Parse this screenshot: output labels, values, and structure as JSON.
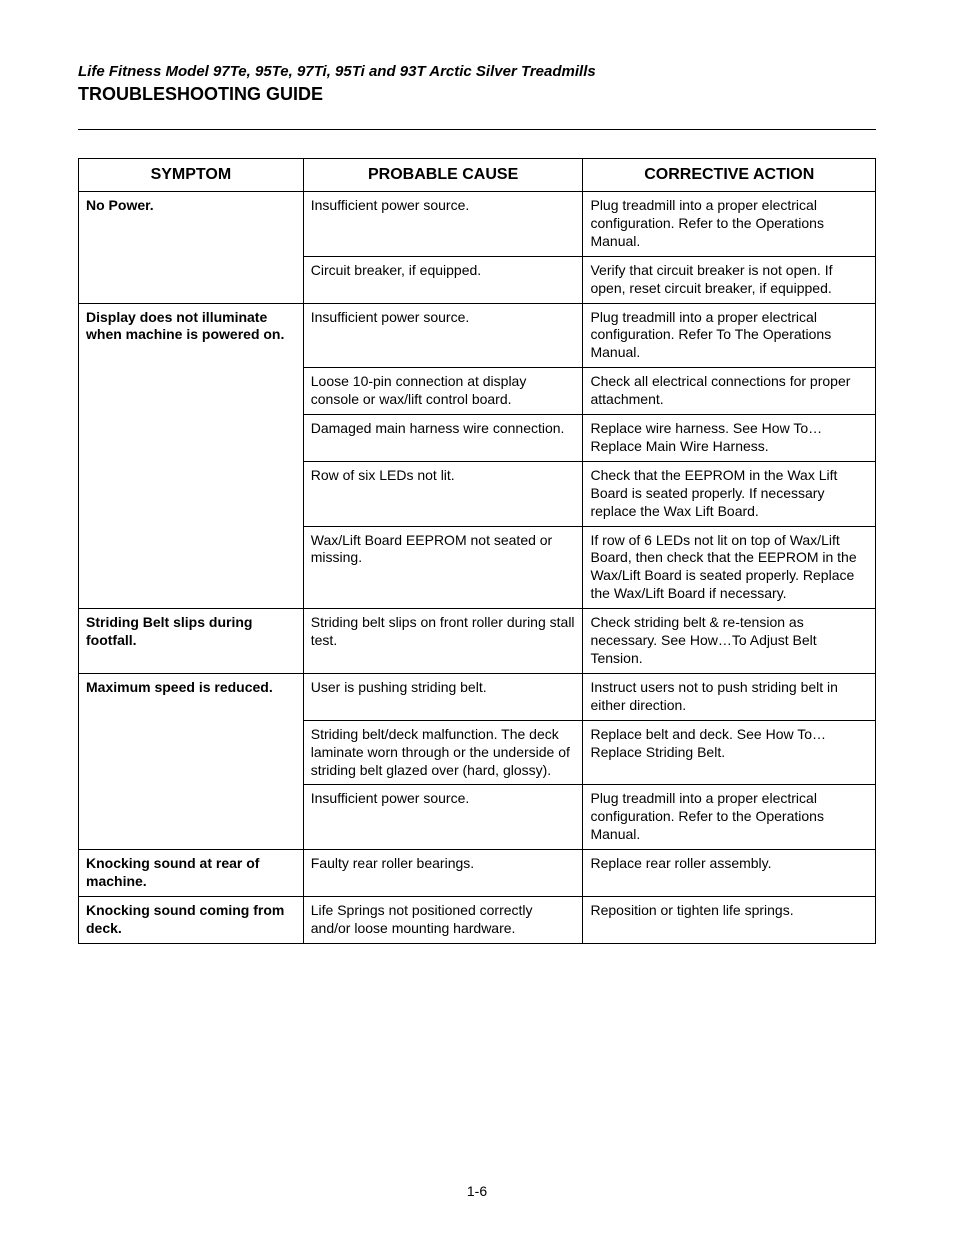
{
  "doc": {
    "subtitle": "Life Fitness Model 97Te, 95Te, 97Ti, 95Ti and 93T Arctic Silver Treadmills",
    "title": "TROUBLESHOOTING GUIDE",
    "page_number": "1-6"
  },
  "table": {
    "headers": {
      "symptom": "SYMPTOM",
      "cause": "PROBABLE CAUSE",
      "action": "CORRECTIVE ACTION"
    },
    "groups": [
      {
        "symptom": "No Power.",
        "rows": [
          {
            "cause": "Insufficient power source.",
            "action": "Plug treadmill into a proper electrical configuration. Refer to the Operations Manual."
          },
          {
            "cause": "Circuit breaker, if equipped.",
            "action": "Verify that circuit breaker is not open. If open, reset circuit breaker, if equipped."
          }
        ]
      },
      {
        "symptom": "Display does not illuminate when machine is powered on.",
        "rows": [
          {
            "cause": "Insufficient power source.",
            "action": "Plug treadmill into a proper electrical configuration. Refer To The Operations Manual."
          },
          {
            "cause": "Loose 10-pin connection at display console or wax/lift control board.",
            "action": "Check all electrical connections for proper attachment."
          },
          {
            "cause": "Damaged main harness wire connection.",
            "action": "Replace wire harness. See How To…Replace Main Wire Harness."
          },
          {
            "cause": "Row of six LEDs not lit.",
            "action": "Check that the EEPROM in the Wax Lift Board is seated properly.  If necessary replace the Wax Lift Board."
          },
          {
            "cause": "Wax/Lift Board EEPROM not seated or missing.",
            "action": "If row of 6 LEDs not lit on top of Wax/Lift Board, then check that the EEPROM in the Wax/Lift Board is seated properly. Replace the Wax/Lift Board if necessary."
          }
        ]
      },
      {
        "symptom": "Striding Belt slips during footfall.",
        "rows": [
          {
            "cause": "Striding belt slips on front roller during stall test.",
            "action": "Check striding belt & re-tension as necessary. See How…To Adjust Belt Tension."
          }
        ]
      },
      {
        "symptom": "Maximum speed is reduced.",
        "rows": [
          {
            "cause": "User is pushing striding belt.",
            "action": "Instruct users not to push striding belt in either direction."
          },
          {
            "cause": "Striding belt/deck malfunction. The deck laminate worn through or the underside of striding belt glazed over (hard, glossy).",
            "action": "Replace belt and deck. See How To…Replace Striding Belt."
          },
          {
            "cause": "Insufficient power source.",
            "action": "Plug treadmill into a proper electrical configuration. Refer to the Operations Manual."
          }
        ]
      },
      {
        "symptom": "Knocking sound at rear of machine.",
        "rows": [
          {
            "cause": "Faulty rear roller bearings.",
            "action": "Replace rear roller assembly."
          }
        ]
      },
      {
        "symptom": "Knocking sound coming from deck.",
        "rows": [
          {
            "cause": "Life Springs not positioned correctly and/or loose mounting hardware.",
            "action": "Reposition or tighten life springs."
          }
        ]
      }
    ]
  }
}
